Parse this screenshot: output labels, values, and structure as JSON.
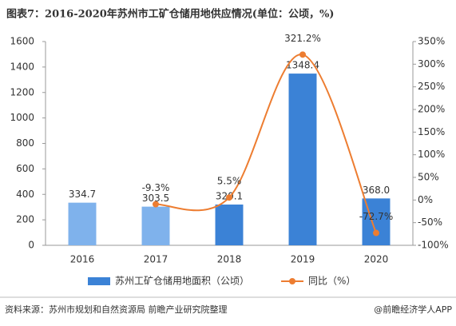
{
  "chart_data": {
    "type": "bar-line",
    "title": "图表7：2016-2020年苏州市工矿仓储用地供应情况(单位：公顷，%)",
    "categories": [
      "2016",
      "2017",
      "2018",
      "2019",
      "2020"
    ],
    "series": [
      {
        "name": "苏州工矿仓储用地面积（公顷）",
        "type": "bar",
        "color": "#3b82d6",
        "colors": [
          "#7fb2ec",
          "#7fb2ec",
          "#3b82d6",
          "#3b82d6",
          "#3b82d6"
        ],
        "values": [
          334.7,
          303.5,
          320.1,
          1348.4,
          368.0
        ],
        "value_labels": [
          "334.7",
          "303.5",
          "320.1",
          "1348.4",
          "368.0"
        ]
      },
      {
        "name": "同比（%）",
        "type": "line",
        "axis": "y2",
        "color": "#ed7d31",
        "values": [
          null,
          -9.3,
          5.5,
          321.2,
          -72.7
        ],
        "value_labels": [
          null,
          "-9.3%",
          "5.5%",
          "321.2%",
          "-72.7%"
        ]
      }
    ],
    "ylim": [
      0,
      1600
    ],
    "yticks": [
      0,
      200,
      400,
      600,
      800,
      1000,
      1200,
      1400,
      1600
    ],
    "y2lim": [
      -100,
      350
    ],
    "y2ticks": [
      {
        "value": -100,
        "label": "-100%"
      },
      {
        "value": -50,
        "label": "-50%"
      },
      {
        "value": 0,
        "label": "0%"
      },
      {
        "value": 50,
        "label": "50%"
      },
      {
        "value": 100,
        "label": "100%"
      },
      {
        "value": 150,
        "label": "150%"
      },
      {
        "value": 200,
        "label": "200%"
      },
      {
        "value": 250,
        "label": "250%"
      },
      {
        "value": 300,
        "label": "300%"
      },
      {
        "value": 350,
        "label": "350%"
      }
    ],
    "source": "资料来源：苏州市规划和自然资源局 前瞻产业研究院整理",
    "brand": "@前瞻经济学人APP"
  }
}
